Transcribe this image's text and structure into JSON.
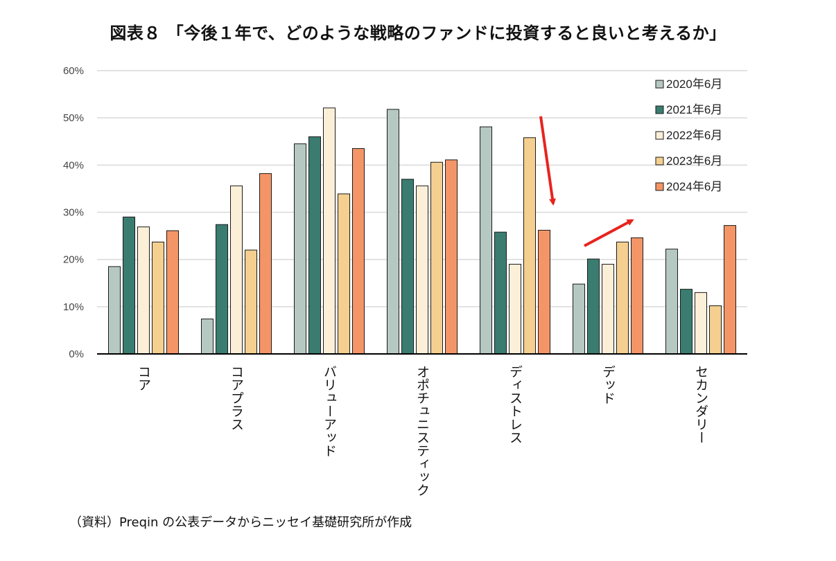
{
  "chart_data": {
    "type": "bar",
    "title": "図表８ 「今後１年で、どのような戦略のファンドに投資すると良いと考えるか」",
    "categories": [
      "コア",
      "コアプラス",
      "バリューアッド",
      "オポチュニスティック",
      "ディストレス",
      "デッド",
      "セカンダリー"
    ],
    "series": [
      {
        "name": "2020年6月",
        "color": "#b6c8c2",
        "values": [
          18.5,
          7.4,
          44.5,
          51.8,
          48.1,
          14.8,
          22.2
        ]
      },
      {
        "name": "2021年6月",
        "color": "#3a7d70",
        "values": [
          29.0,
          27.4,
          46.0,
          37.0,
          25.8,
          20.1,
          13.7
        ]
      },
      {
        "name": "2022年6月",
        "color": "#fcefd8",
        "values": [
          26.9,
          35.6,
          52.1,
          35.6,
          19.0,
          19.0,
          13.0
        ]
      },
      {
        "name": "2023年6月",
        "color": "#f4cf8f",
        "values": [
          23.7,
          22.0,
          33.9,
          40.6,
          45.8,
          23.7,
          10.2
        ]
      },
      {
        "name": "2024年6月",
        "color": "#f49567",
        "values": [
          26.1,
          38.2,
          43.5,
          41.1,
          26.2,
          24.6,
          27.2
        ]
      }
    ],
    "yticks": [
      "0%",
      "10%",
      "20%",
      "30%",
      "40%",
      "50%",
      "60%"
    ],
    "ylim": [
      0,
      60
    ],
    "grid": true,
    "legend_position": "top-right",
    "annotations": [
      {
        "type": "arrow",
        "direction": "down",
        "near": "ディストレス",
        "color": "#e8231f"
      },
      {
        "type": "arrow",
        "direction": "up-right",
        "near": "デッド",
        "color": "#e8231f"
      }
    ]
  },
  "source_note": "（資料）Preqin の公表データからニッセイ基礎研究所が作成",
  "colors": {
    "grid": "#d9d9d9",
    "axis": "#000000",
    "bar_border": "#1a1a1a",
    "arrow": "#e8231f"
  }
}
